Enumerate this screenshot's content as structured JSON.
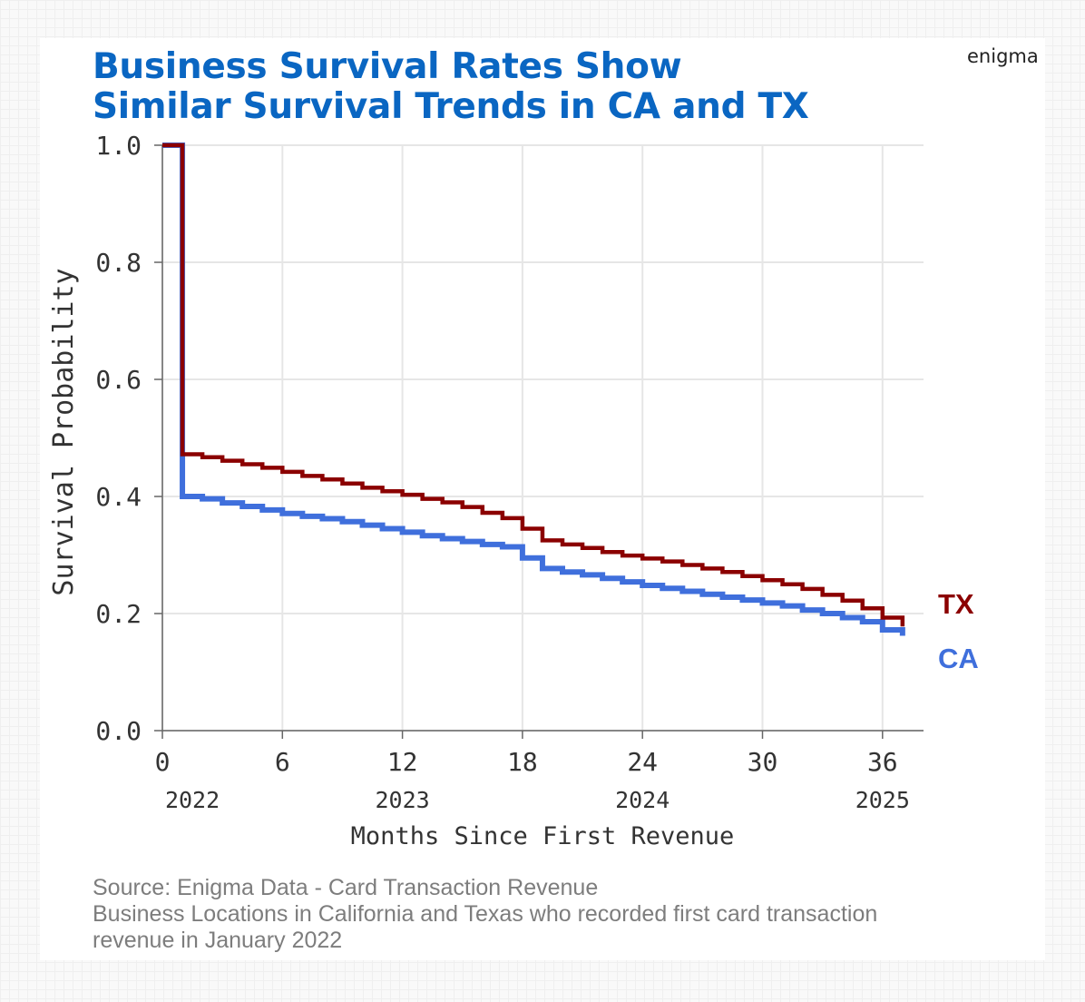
{
  "header": {
    "title_line1": "Business Survival Rates Show",
    "title_line2": "Similar Survival Trends in CA and TX",
    "brand": "enigma"
  },
  "footer": {
    "source_line1": "Source: Enigma Data - Card Transaction Revenue",
    "source_line2": "Business Locations in California and Texas who recorded first card transaction",
    "source_line3": "revenue in January 2022"
  },
  "chart_data": {
    "type": "line",
    "step": true,
    "xlabel": "Months Since First Revenue",
    "ylabel": "Survival Probability",
    "xlim": [
      0,
      38
    ],
    "ylim": [
      0,
      1
    ],
    "x_ticks": [
      0,
      6,
      12,
      18,
      24,
      30,
      36
    ],
    "y_ticks": [
      "0.0",
      "0.2",
      "0.4",
      "0.6",
      "0.8",
      "1.0"
    ],
    "year_labels": [
      {
        "month": 1.5,
        "label": "2022"
      },
      {
        "month": 12,
        "label": "2023"
      },
      {
        "month": 24,
        "label": "2024"
      },
      {
        "month": 36,
        "label": "2025"
      }
    ],
    "grid": true,
    "legend": "direct labels at right",
    "series": [
      {
        "name": "TX",
        "color": "#8b0000",
        "x": [
          0,
          1,
          2,
          3,
          4,
          5,
          6,
          7,
          8,
          9,
          10,
          11,
          12,
          13,
          14,
          15,
          16,
          17,
          18,
          19,
          20,
          21,
          22,
          23,
          24,
          25,
          26,
          27,
          28,
          29,
          30,
          31,
          32,
          33,
          34,
          35,
          36,
          37
        ],
        "y": [
          1.0,
          0.472,
          0.467,
          0.461,
          0.455,
          0.449,
          0.442,
          0.435,
          0.429,
          0.422,
          0.415,
          0.409,
          0.403,
          0.396,
          0.39,
          0.382,
          0.372,
          0.363,
          0.345,
          0.325,
          0.318,
          0.312,
          0.305,
          0.299,
          0.294,
          0.289,
          0.283,
          0.277,
          0.271,
          0.264,
          0.257,
          0.25,
          0.242,
          0.232,
          0.222,
          0.209,
          0.193,
          0.178
        ]
      },
      {
        "name": "CA",
        "color": "#3f6fdc",
        "x": [
          0,
          1,
          2,
          3,
          4,
          5,
          6,
          7,
          8,
          9,
          10,
          11,
          12,
          13,
          14,
          15,
          16,
          17,
          18,
          19,
          20,
          21,
          22,
          23,
          24,
          25,
          26,
          27,
          28,
          29,
          30,
          31,
          32,
          33,
          34,
          35,
          36,
          37
        ],
        "y": [
          1.0,
          0.4,
          0.396,
          0.389,
          0.383,
          0.377,
          0.371,
          0.366,
          0.362,
          0.357,
          0.351,
          0.345,
          0.339,
          0.333,
          0.328,
          0.323,
          0.318,
          0.314,
          0.295,
          0.277,
          0.271,
          0.266,
          0.26,
          0.254,
          0.248,
          0.243,
          0.238,
          0.233,
          0.228,
          0.223,
          0.218,
          0.213,
          0.206,
          0.2,
          0.193,
          0.186,
          0.172,
          0.162
        ]
      }
    ]
  }
}
